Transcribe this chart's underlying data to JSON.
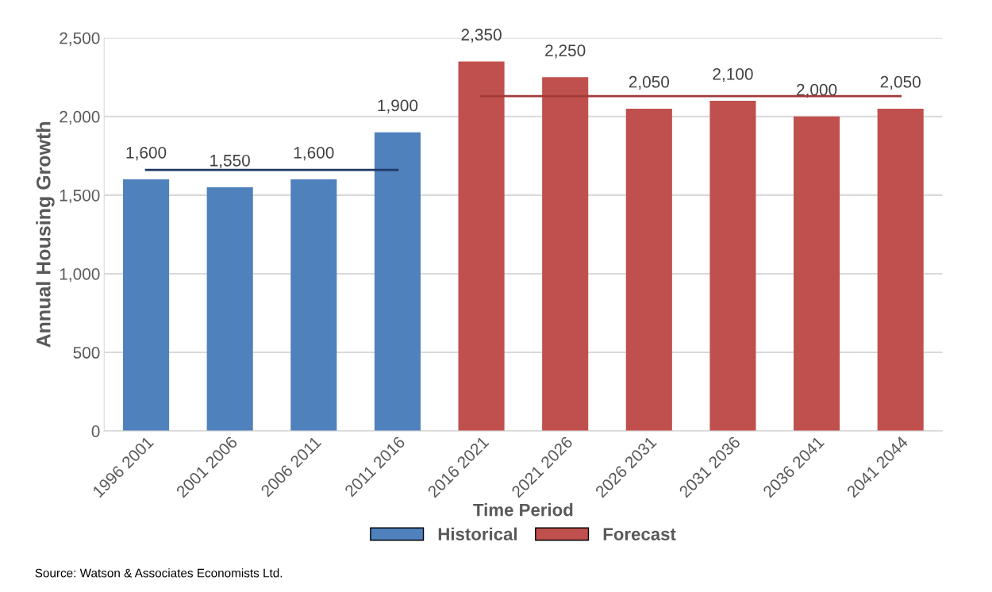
{
  "chart_data": {
    "type": "bar",
    "xlabel": "Time Period",
    "ylabel": "Annual Housing Growth",
    "categories": [
      "1996 2001",
      "2001 2006",
      "2006 2011",
      "2011 2016",
      "2016 2021",
      "2021 2026",
      "2026 2031",
      "2031 2036",
      "2036 2041",
      "2041 2044"
    ],
    "series": [
      {
        "name": "Historical",
        "color": "#4f81bd",
        "values": [
          1600,
          1550,
          1600,
          1900,
          null,
          null,
          null,
          null,
          null,
          null
        ],
        "value_labels": [
          "1,600",
          "1,550",
          "1,600",
          "1,900",
          null,
          null,
          null,
          null,
          null,
          null
        ]
      },
      {
        "name": "Forecast",
        "color": "#c0504d",
        "values": [
          null,
          null,
          null,
          null,
          2350,
          2250,
          2050,
          2100,
          2000,
          2050
        ],
        "value_labels": [
          null,
          null,
          null,
          null,
          "2,350",
          "2,250",
          "2,050",
          "2,100",
          "2,000",
          "2,050"
        ]
      },
      {
        "type": "line",
        "color": "#1f3864",
        "x": [
          "1996 2001",
          "2011 2016"
        ],
        "values": [
          1660,
          1660
        ]
      },
      {
        "type": "line",
        "color": "#a33a3a",
        "x": [
          "2016 2021",
          "2041 2044"
        ],
        "values": [
          2130,
          2130
        ]
      }
    ],
    "ylim": [
      0,
      2500
    ],
    "yticks": [
      0,
      {
        "value": 500,
        "label": "500"
      },
      {
        "value": 1000,
        "label": "1,000"
      },
      {
        "value": 1500,
        "label": "1,500"
      },
      {
        "value": 2000,
        "label": "2,000"
      },
      {
        "value": 2500,
        "label": "2,500"
      }
    ],
    "grid": "y",
    "legend": "bottom",
    "annotations": [
      "Source: Watson & Associates Economists Ltd."
    ]
  }
}
